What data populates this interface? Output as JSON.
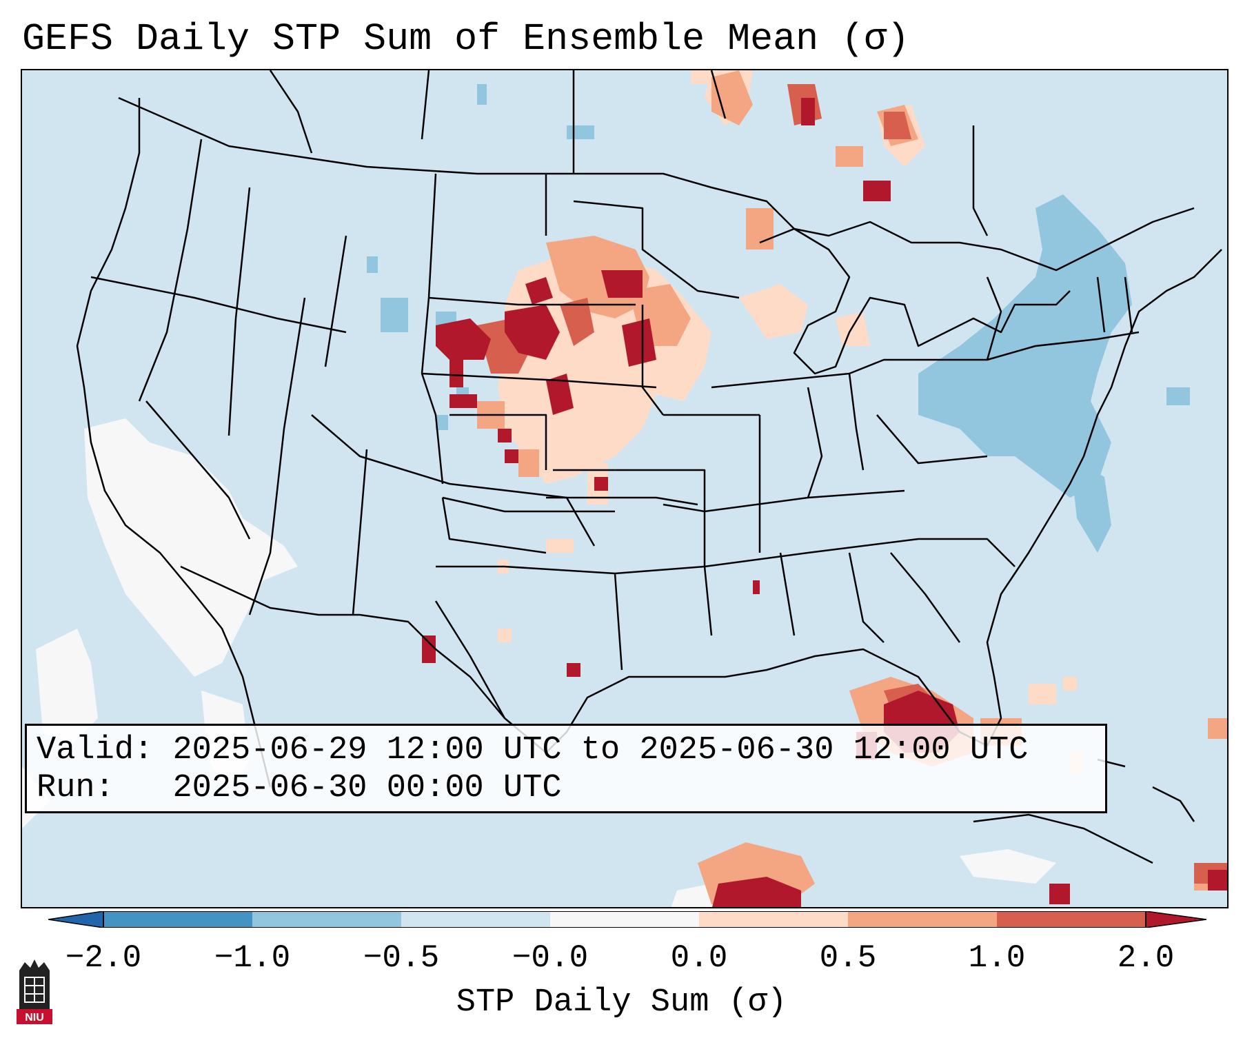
{
  "title": "GEFS Daily STP Sum of Ensemble Mean (σ)",
  "info": {
    "valid_label": "Valid:",
    "valid_value": "2025-06-29 12:00 UTC to 2025-06-30 12:00 UTC",
    "run_label": "Run:",
    "run_value": "2025-06-30 00:00 UTC"
  },
  "colorbar": {
    "label": "STP Daily Sum (σ)",
    "ticks": [
      "−2.0",
      "−1.0",
      "−0.5",
      "−0.0",
      "0.0",
      "0.5",
      "1.0",
      "2.0"
    ],
    "colors": [
      "#2166ac",
      "#4393c3",
      "#92c5de",
      "#d1e5f0",
      "#f7f7f7",
      "#fddbc7",
      "#f4a582",
      "#d6604d",
      "#b2182b"
    ]
  },
  "map": {
    "background_color": "#d1e5f0",
    "region": "Continental United States, southern Canada, northern Mexico, Gulf of Mexico"
  },
  "logo": {
    "text": "NIU"
  }
}
